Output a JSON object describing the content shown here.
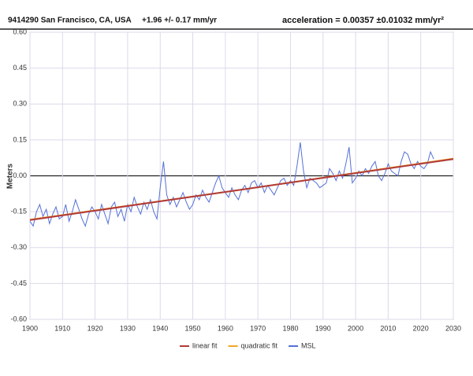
{
  "chart_data": {
    "type": "line",
    "title": "9414290 San Francisco, CA, USA",
    "subtitle": "+1.96 +/- 0.17 mm/yr",
    "annotation": "acceleration = 0.00357 ±0.01032 mm/yr²",
    "ylabel": "Meters",
    "xlim": [
      1900,
      2030
    ],
    "xticks": [
      1900,
      1910,
      1920,
      1930,
      1940,
      1950,
      1960,
      1970,
      1980,
      1990,
      2000,
      2010,
      2020,
      2030
    ],
    "ylim": [
      -0.6,
      0.6
    ],
    "yticks": [
      {
        "value": 0.6,
        "label": "0.60"
      },
      0.45,
      {
        "value": 0.3,
        "label": "0.30"
      },
      0.15,
      {
        "value": 0,
        "label": "0.00"
      },
      -0.15,
      {
        "value": -0.3,
        "label": "-0.30"
      },
      -0.45,
      {
        "value": -0.6,
        "label": "-0.60"
      }
    ],
    "grid": true,
    "legend": "bottom",
    "series": [
      {
        "name": "linear fit",
        "color": "#b03a3a",
        "x": [
          1900,
          2030
        ],
        "values": [
          -0.185,
          0.07
        ]
      },
      {
        "name": "quadratic fit",
        "color": "#f5a623",
        "x": [
          1900,
          1965,
          2030
        ],
        "values": [
          -0.183,
          -0.058,
          0.072
        ]
      },
      {
        "name": "MSL",
        "color": "#5470d6",
        "x": [
          1900,
          1901,
          1902,
          1903,
          1904,
          1905,
          1906,
          1907,
          1908,
          1909,
          1910,
          1911,
          1912,
          1913,
          1914,
          1915,
          1916,
          1917,
          1918,
          1919,
          1920,
          1921,
          1922,
          1923,
          1924,
          1925,
          1926,
          1927,
          1928,
          1929,
          1930,
          1931,
          1932,
          1933,
          1934,
          1935,
          1936,
          1937,
          1938,
          1939,
          1940,
          1941,
          1942,
          1943,
          1944,
          1945,
          1946,
          1947,
          1948,
          1949,
          1950,
          1951,
          1952,
          1953,
          1954,
          1955,
          1956,
          1957,
          1958,
          1959,
          1960,
          1961,
          1962,
          1963,
          1964,
          1965,
          1966,
          1967,
          1968,
          1969,
          1970,
          1971,
          1972,
          1973,
          1974,
          1975,
          1976,
          1977,
          1978,
          1979,
          1980,
          1981,
          1982,
          1983,
          1984,
          1985,
          1986,
          1987,
          1988,
          1989,
          1990,
          1991,
          1992,
          1993,
          1994,
          1995,
          1996,
          1997,
          1998,
          1999,
          2000,
          2001,
          2002,
          2003,
          2004,
          2005,
          2006,
          2007,
          2008,
          2009,
          2010,
          2011,
          2012,
          2013,
          2014,
          2015,
          2016,
          2017,
          2018,
          2019,
          2020,
          2021,
          2022,
          2023,
          2024
        ],
        "values": [
          -0.19,
          -0.21,
          -0.15,
          -0.12,
          -0.17,
          -0.14,
          -0.2,
          -0.16,
          -0.13,
          -0.18,
          -0.17,
          -0.12,
          -0.19,
          -0.15,
          -0.1,
          -0.14,
          -0.18,
          -0.21,
          -0.16,
          -0.13,
          -0.15,
          -0.18,
          -0.12,
          -0.16,
          -0.2,
          -0.13,
          -0.11,
          -0.17,
          -0.14,
          -0.19,
          -0.12,
          -0.15,
          -0.09,
          -0.13,
          -0.16,
          -0.11,
          -0.14,
          -0.1,
          -0.15,
          -0.18,
          -0.05,
          0.06,
          -0.08,
          -0.12,
          -0.09,
          -0.13,
          -0.1,
          -0.07,
          -0.11,
          -0.14,
          -0.12,
          -0.08,
          -0.1,
          -0.06,
          -0.09,
          -0.11,
          -0.07,
          -0.03,
          0,
          -0.05,
          -0.07,
          -0.09,
          -0.05,
          -0.08,
          -0.1,
          -0.06,
          -0.04,
          -0.07,
          -0.03,
          -0.02,
          -0.05,
          -0.03,
          -0.07,
          -0.04,
          -0.06,
          -0.08,
          -0.05,
          -0.02,
          -0.01,
          -0.04,
          -0.02,
          -0.04,
          0.04,
          0.14,
          0.02,
          -0.05,
          -0.01,
          -0.02,
          -0.03,
          -0.05,
          -0.04,
          -0.03,
          0.03,
          0.01,
          -0.02,
          0.02,
          -0.01,
          0.05,
          0.12,
          -0.03,
          -0.01,
          0.02,
          0,
          0.03,
          0.01,
          0.04,
          0.06,
          0,
          -0.02,
          0.01,
          0.05,
          0.02,
          0.01,
          0,
          0.06,
          0.1,
          0.09,
          0.05,
          0.03,
          0.06,
          0.04,
          0.03,
          0.05,
          0.1,
          0.07
        ]
      }
    ]
  }
}
